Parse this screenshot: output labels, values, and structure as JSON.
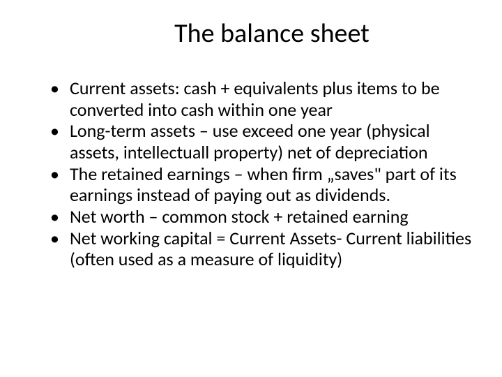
{
  "slide": {
    "title": "The balance sheet",
    "bullets": [
      "Current assets: cash + equivalents plus items to be converted into cash within one year",
      "Long-term assets – use exceed one year (physical assets, intellectuall property) net of depreciation",
      "The retained earnings – when firm „saves\" part of its earnings instead of paying out as dividends.",
      "Net worth – common stock + retained earning",
      "Net working capital = Current Assets- Current liabilities (often used as a measure of liquidity)"
    ]
  },
  "styling": {
    "background_color": "#ffffff",
    "text_color": "#000000",
    "title_fontsize": 38,
    "title_fontweight": 400,
    "body_fontsize": 26,
    "font_family": "Calibri",
    "bullet_marker": "•",
    "slide_width": 720,
    "slide_height": 540
  }
}
